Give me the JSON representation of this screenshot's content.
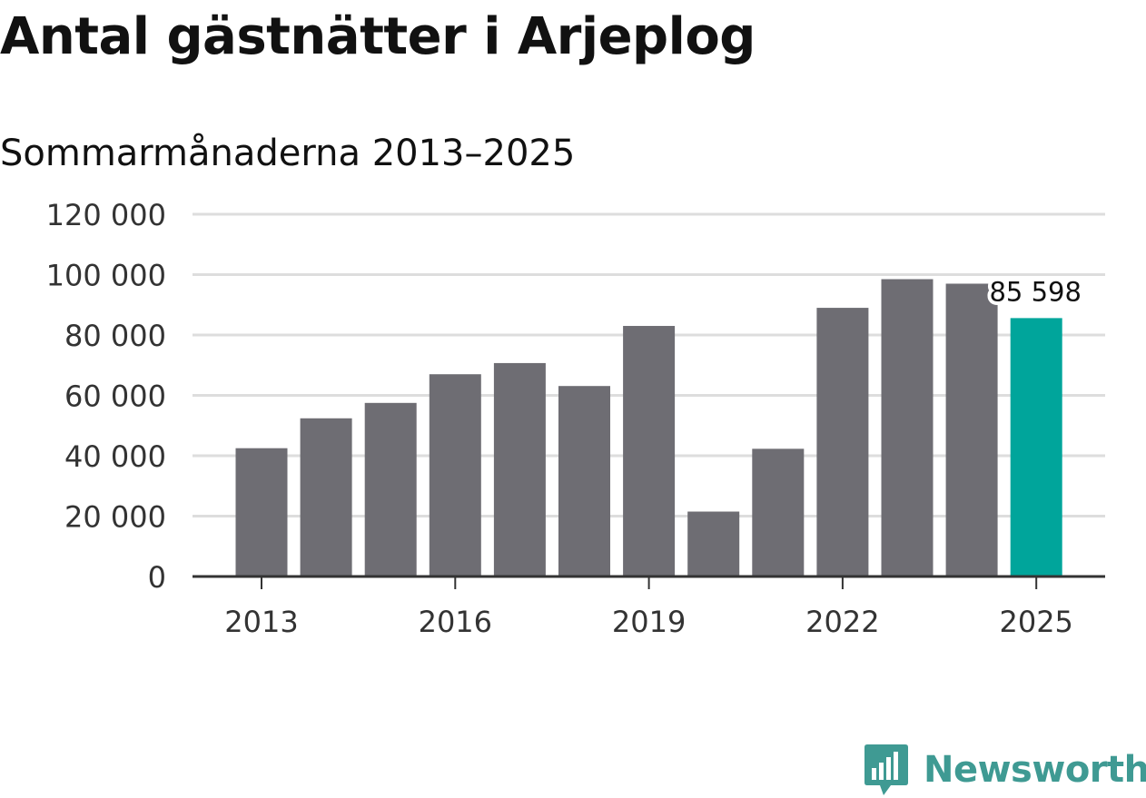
{
  "title": "Antal gästnätter i Arjeplog",
  "subtitle": "Sommarmånaderna 2013–2025",
  "logo": {
    "text": "Newsworthy",
    "icon": "bar-chart-speech-bubble-icon"
  },
  "colors": {
    "bar": "#6e6d73",
    "highlight": "#00a59b",
    "grid": "#dddddd",
    "axis": "#333333",
    "logo": "#3f9a93"
  },
  "chart_data": {
    "type": "bar",
    "title": "Antal gästnätter i Arjeplog",
    "subtitle": "Sommarmånaderna 2013–2025",
    "xlabel": "",
    "ylabel": "",
    "categories": [
      "2013",
      "2014",
      "2015",
      "2016",
      "2017",
      "2018",
      "2019",
      "2020",
      "2021",
      "2022",
      "2023",
      "2024",
      "2025"
    ],
    "values": [
      42500,
      52400,
      57500,
      67000,
      70700,
      63100,
      83000,
      21500,
      42300,
      89000,
      98500,
      97000,
      85598
    ],
    "highlight_index": 12,
    "ylim": [
      0,
      120000
    ],
    "yticks": [
      0,
      20000,
      40000,
      60000,
      80000,
      100000,
      120000
    ],
    "ytick_labels": [
      "0",
      "20 000",
      "40 000",
      "60 000",
      "80 000",
      "100 000",
      "120 000"
    ],
    "xtick_labels": [
      "2013",
      "2016",
      "2019",
      "2022",
      "2025"
    ],
    "data_label": {
      "index": 12,
      "text": "85 598"
    },
    "grid": true,
    "legend": "none"
  }
}
